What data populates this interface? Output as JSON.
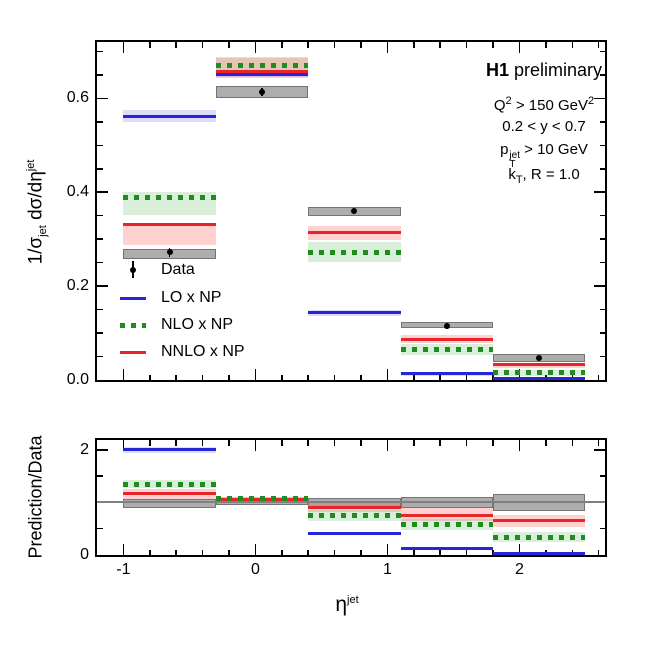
{
  "header": {
    "experiment_bold": "H1",
    "experiment_rest": " preliminary"
  },
  "annotations": {
    "q2": [
      {
        "t": "t",
        "v": "Q"
      },
      {
        "t": "sup",
        "v": "2"
      },
      {
        "t": "t",
        "v": " > 150 GeV"
      },
      {
        "t": "sup",
        "v": "2"
      }
    ],
    "y_range": [
      {
        "t": "t",
        "v": "0.2 < y < 0.7"
      }
    ],
    "pt": [
      {
        "t": "t",
        "v": "p"
      },
      {
        "t": "stack",
        "top": "jet",
        "bot": "T"
      },
      {
        "t": "t",
        "v": " > 10 GeV"
      }
    ],
    "kt": [
      {
        "t": "t",
        "v": "k"
      },
      {
        "t": "sub",
        "v": "T"
      },
      {
        "t": "t",
        "v": ", R = 1.0"
      }
    ]
  },
  "axis_labels": {
    "main_y": [
      {
        "t": "t",
        "v": "1/σ"
      },
      {
        "t": "sub",
        "v": "jet"
      },
      {
        "t": "t",
        "v": " dσ/dη"
      },
      {
        "t": "sup",
        "v": "jet"
      }
    ],
    "ratio_y": [
      {
        "t": "t",
        "v": "Prediction/Data"
      }
    ],
    "x": [
      {
        "t": "t",
        "v": "η"
      },
      {
        "t": "sup",
        "v": "jet"
      }
    ]
  },
  "legend": {
    "items": [
      {
        "label": "Data",
        "marker": "data-point"
      },
      {
        "label": "LO x NP",
        "marker": "line",
        "color_key": "lo"
      },
      {
        "label": "NLO x NP",
        "marker": "dashed",
        "color_key": "nlo"
      },
      {
        "label": "NNLO x NP",
        "marker": "line",
        "color_key": "nnlo"
      }
    ]
  },
  "chart_data": {
    "type": "bar",
    "subtype": "step-histogram-with-uncertainty-bands-and-ratio-panel",
    "x_bin_edges": [
      -1.0,
      -0.3,
      0.4,
      1.1,
      1.8,
      2.5
    ],
    "xlim": [
      -1.2,
      2.648
    ],
    "x_major_ticks": [
      -1,
      0,
      1,
      2
    ],
    "x_tick_labels": [
      "-1",
      "0",
      "1",
      "2"
    ],
    "x_minor_step": 0.2,
    "main_panel": {
      "ylim": [
        0,
        0.72
      ],
      "y_major_ticks": [
        0.0,
        0.2,
        0.4,
        0.6
      ],
      "y_tick_labels": [
        "0.0",
        "0.2",
        "0.4",
        "0.6"
      ],
      "y_minor_step": 0.05,
      "data": {
        "y": [
          0.272,
          0.613,
          0.36,
          0.115,
          0.047
        ],
        "stat_err": [
          0.01,
          0.008,
          0.007,
          0.006,
          0.005
        ],
        "band_lo": [
          0.257,
          0.6,
          0.349,
          0.11,
          0.038
        ],
        "band_hi": [
          0.279,
          0.627,
          0.369,
          0.123,
          0.055
        ]
      },
      "lo": {
        "y": [
          0.562,
          0.651,
          0.143,
          0.013,
          0.004
        ],
        "band_lo": [
          0.549,
          0.644,
          0.136,
          0.009,
          0.001
        ],
        "band_hi": [
          0.575,
          0.658,
          0.15,
          0.017,
          0.007
        ]
      },
      "nlo": {
        "y": [
          0.388,
          0.671,
          0.272,
          0.066,
          0.015
        ],
        "band_lo": [
          0.351,
          0.658,
          0.251,
          0.053,
          0.008
        ],
        "band_hi": [
          0.401,
          0.685,
          0.293,
          0.077,
          0.021
        ]
      },
      "nnlo": {
        "y": [
          0.331,
          0.657,
          0.315,
          0.087,
          0.032
        ],
        "band_lo": [
          0.287,
          0.646,
          0.298,
          0.079,
          0.026
        ],
        "band_hi": [
          0.335,
          0.687,
          0.329,
          0.096,
          0.037
        ]
      }
    },
    "ratio_panel": {
      "ylim": [
        0,
        2.19
      ],
      "unity": 1.0,
      "y_major_ticks": [
        0,
        1,
        2
      ],
      "y_tick_labels": [
        "0",
        "2"
      ],
      "y_labeled_values": [
        0,
        2
      ],
      "y_minor_ticks": [
        0.5,
        1.5
      ],
      "data": {
        "band_lo": [
          0.9,
          0.96,
          0.91,
          0.89,
          0.84
        ],
        "band_hi": [
          1.07,
          1.04,
          1.09,
          1.11,
          1.16
        ]
      },
      "lo": {
        "y": [
          2.0,
          1.05,
          0.41,
          0.13,
          0.02
        ],
        "band_lo": [
          1.95,
          1.02,
          0.38,
          0.1,
          0.0
        ],
        "band_hi": [
          2.05,
          1.08,
          0.44,
          0.16,
          0.04
        ]
      },
      "nlo": {
        "y": [
          1.35,
          1.07,
          0.75,
          0.58,
          0.34
        ],
        "band_lo": [
          1.27,
          1.03,
          0.65,
          0.48,
          0.25
        ],
        "band_hi": [
          1.43,
          1.11,
          0.86,
          0.69,
          0.44
        ]
      },
      "nnlo": {
        "y": [
          1.17,
          1.06,
          0.9,
          0.75,
          0.65
        ],
        "band_lo": [
          1.06,
          1.02,
          0.82,
          0.65,
          0.53
        ],
        "band_hi": [
          1.25,
          1.1,
          0.99,
          0.89,
          0.76
        ]
      }
    },
    "colors": {
      "lo": "#2626d8",
      "lo_band": "rgba(100,100,235,0.22)",
      "nlo": "#1e8c1e",
      "nlo_band": "rgba(80,180,80,0.22)",
      "nnlo": "#e8252a",
      "nnlo_band": "rgba(255,90,90,0.28)",
      "data": "#000000",
      "data_band_fill": "rgba(150,150,150,0.78)",
      "data_band_border": "rgba(110,110,110,0.9)",
      "unity_line": "#808080"
    }
  }
}
